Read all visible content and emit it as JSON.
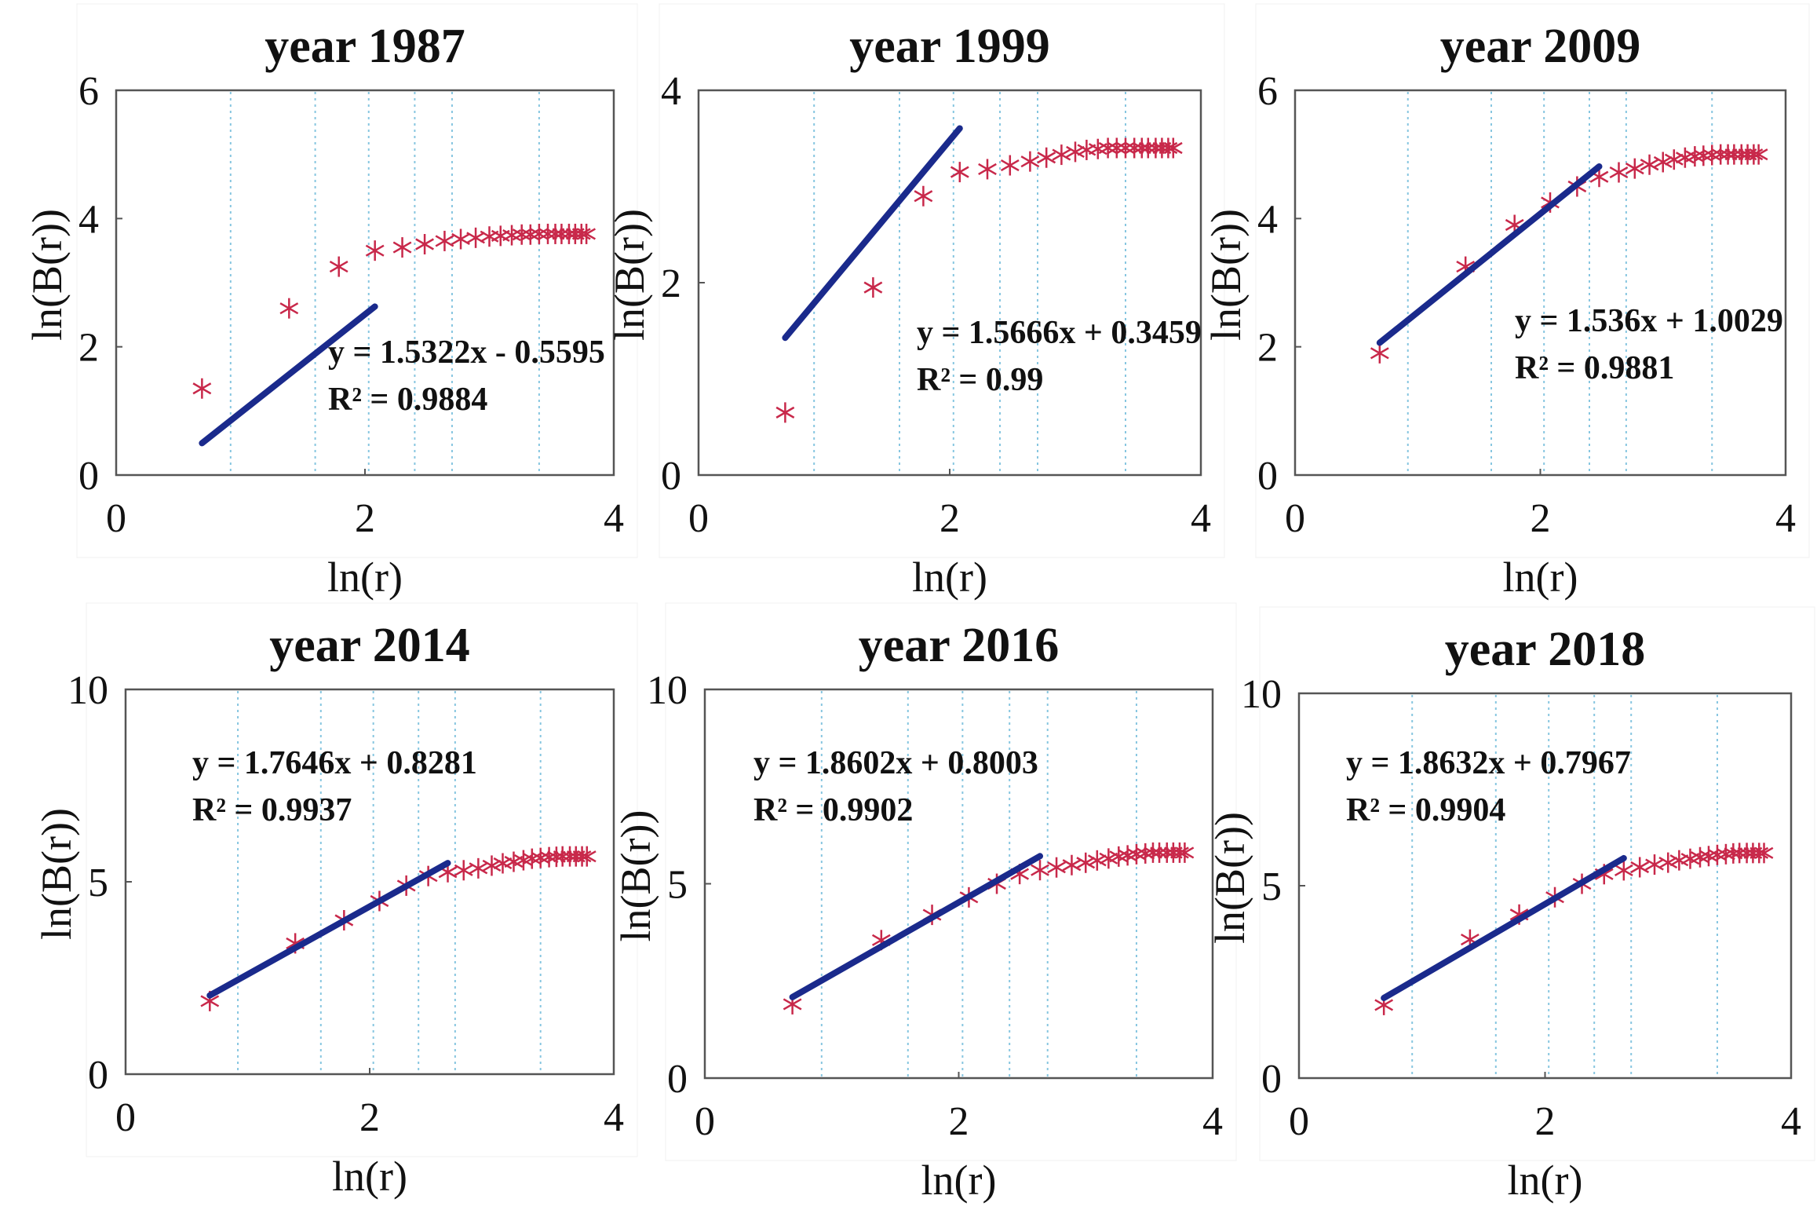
{
  "chart_data": [
    {
      "type": "scatter",
      "title": "year 1987",
      "xlabel": "ln(r)",
      "ylabel": "ln(B(r))",
      "xlim": [
        0,
        4
      ],
      "ylim": [
        0,
        6
      ],
      "xticks": [
        "0",
        "2",
        "4"
      ],
      "yticks": [
        "0",
        "2",
        "4",
        "6"
      ],
      "x": [
        0.69,
        1.39,
        1.79,
        2.08,
        2.3,
        2.48,
        2.64,
        2.77,
        2.89,
        3.0,
        3.09,
        3.18,
        3.26,
        3.33,
        3.4,
        3.47,
        3.53,
        3.58,
        3.64,
        3.69,
        3.74,
        3.78
      ],
      "y": [
        1.35,
        2.6,
        3.25,
        3.5,
        3.55,
        3.6,
        3.65,
        3.68,
        3.7,
        3.72,
        3.73,
        3.74,
        3.75,
        3.75,
        3.76,
        3.76,
        3.76,
        3.76,
        3.76,
        3.76,
        3.76,
        3.76
      ],
      "fit": {
        "x": [
          0.69,
          2.08
        ]
      },
      "equation": "y = 1.5322x - 0.5595",
      "r2": "R² = 0.9884",
      "gridlines_x": [
        0.92,
        1.6,
        2.03,
        2.4,
        2.7,
        3.4
      ],
      "grid": "vertical dotted",
      "colors": {
        "points": "#c8284a",
        "fit": "#1a2a8c",
        "grid": "#87c6e0"
      }
    },
    {
      "type": "scatter",
      "title": "year 1999",
      "xlabel": "ln(r)",
      "ylabel": "ln(B(r))",
      "xlim": [
        0,
        4
      ],
      "ylim": [
        0,
        4
      ],
      "xticks": [
        "0",
        "2",
        "4"
      ],
      "yticks": [
        "0",
        "2",
        "4"
      ],
      "x": [
        0.69,
        1.39,
        1.79,
        2.08,
        2.3,
        2.48,
        2.64,
        2.77,
        2.89,
        3.0,
        3.09,
        3.18,
        3.26,
        3.33,
        3.4,
        3.47,
        3.53,
        3.58,
        3.64,
        3.69,
        3.74,
        3.78
      ],
      "y": [
        0.65,
        1.95,
        2.9,
        3.15,
        3.18,
        3.22,
        3.26,
        3.3,
        3.33,
        3.36,
        3.38,
        3.39,
        3.4,
        3.4,
        3.4,
        3.4,
        3.4,
        3.4,
        3.4,
        3.4,
        3.4,
        3.4
      ],
      "fit": {
        "x": [
          0.69,
          2.08
        ]
      },
      "equation": "y = 1.5666x + 0.3459",
      "r2": "R² = 0.99",
      "gridlines_x": [
        0.92,
        1.6,
        2.03,
        2.4,
        2.7,
        3.4
      ],
      "grid": "vertical dotted",
      "colors": {
        "points": "#c8284a",
        "fit": "#1a2a8c",
        "grid": "#87c6e0"
      }
    },
    {
      "type": "scatter",
      "title": "year 2009",
      "xlabel": "ln(r)",
      "ylabel": "ln(B(r))",
      "xlim": [
        0,
        4
      ],
      "ylim": [
        0,
        6
      ],
      "xticks": [
        "0",
        "2",
        "4"
      ],
      "yticks": [
        "0",
        "2",
        "4",
        "6"
      ],
      "x": [
        0.69,
        1.39,
        1.79,
        2.08,
        2.3,
        2.48,
        2.64,
        2.77,
        2.89,
        3.0,
        3.09,
        3.18,
        3.26,
        3.33,
        3.4,
        3.47,
        3.53,
        3.58,
        3.64,
        3.69,
        3.74,
        3.78
      ],
      "y": [
        1.9,
        3.25,
        3.9,
        4.25,
        4.5,
        4.65,
        4.72,
        4.78,
        4.84,
        4.88,
        4.92,
        4.95,
        4.97,
        4.98,
        4.99,
        5.0,
        5.0,
        5.0,
        5.0,
        5.0,
        5.0,
        5.0
      ],
      "fit": {
        "x": [
          0.69,
          2.48
        ]
      },
      "equation": "y = 1.536x + 1.0029",
      "r2": "R² = 0.9881",
      "gridlines_x": [
        0.92,
        1.6,
        2.03,
        2.4,
        2.7,
        3.4
      ],
      "grid": "vertical dotted",
      "colors": {
        "points": "#c8284a",
        "fit": "#1a2a8c",
        "grid": "#87c6e0"
      }
    },
    {
      "type": "scatter",
      "title": "year 2014",
      "xlabel": "ln(r)",
      "ylabel": "ln(B(r))",
      "xlim": [
        0,
        4
      ],
      "ylim": [
        0,
        10
      ],
      "xticks": [
        "0",
        "2",
        "4"
      ],
      "yticks": [
        "0",
        "5",
        "10"
      ],
      "x": [
        0.69,
        1.39,
        1.79,
        2.08,
        2.3,
        2.48,
        2.64,
        2.77,
        2.89,
        3.0,
        3.09,
        3.18,
        3.26,
        3.33,
        3.4,
        3.47,
        3.53,
        3.58,
        3.64,
        3.69,
        3.74,
        3.78
      ],
      "y": [
        1.9,
        3.4,
        4.0,
        4.5,
        4.9,
        5.15,
        5.25,
        5.3,
        5.35,
        5.42,
        5.48,
        5.52,
        5.56,
        5.6,
        5.62,
        5.64,
        5.65,
        5.66,
        5.66,
        5.66,
        5.66,
        5.66
      ],
      "fit": {
        "x": [
          0.69,
          2.64
        ]
      },
      "equation": "y = 1.7646x + 0.8281",
      "r2": "R² = 0.9937",
      "gridlines_x": [
        0.92,
        1.6,
        2.03,
        2.4,
        2.7,
        3.4
      ],
      "grid": "vertical dotted",
      "colors": {
        "points": "#c8284a",
        "fit": "#1a2a8c",
        "grid": "#87c6e0"
      }
    },
    {
      "type": "scatter",
      "title": "year 2016",
      "xlabel": "ln(r)",
      "ylabel": "ln(B(r))",
      "xlim": [
        0,
        4
      ],
      "ylim": [
        0,
        10
      ],
      "xticks": [
        "0",
        "2",
        "4"
      ],
      "yticks": [
        "0",
        "5",
        "10"
      ],
      "x": [
        0.69,
        1.39,
        1.79,
        2.08,
        2.3,
        2.48,
        2.64,
        2.77,
        2.89,
        3.0,
        3.09,
        3.18,
        3.26,
        3.33,
        3.4,
        3.47,
        3.53,
        3.58,
        3.64,
        3.69,
        3.74,
        3.78
      ],
      "y": [
        1.9,
        3.55,
        4.2,
        4.65,
        5.0,
        5.25,
        5.35,
        5.42,
        5.48,
        5.54,
        5.6,
        5.65,
        5.7,
        5.73,
        5.76,
        5.78,
        5.8,
        5.8,
        5.8,
        5.8,
        5.8,
        5.8
      ],
      "fit": {
        "x": [
          0.69,
          2.64
        ]
      },
      "equation": "y = 1.8602x + 0.8003",
      "r2": "R² = 0.9902",
      "gridlines_x": [
        0.92,
        1.6,
        2.03,
        2.4,
        2.7,
        3.4
      ],
      "grid": "vertical dotted",
      "colors": {
        "points": "#c8284a",
        "fit": "#1a2a8c",
        "grid": "#87c6e0"
      }
    },
    {
      "type": "scatter",
      "title": "year 2018",
      "xlabel": "ln(r)",
      "ylabel": "ln(B(r))",
      "xlim": [
        0,
        4
      ],
      "ylim": [
        0,
        10
      ],
      "xticks": [
        "0",
        "2",
        "4"
      ],
      "yticks": [
        "0",
        "5",
        "10"
      ],
      "x": [
        0.69,
        1.39,
        1.79,
        2.08,
        2.3,
        2.48,
        2.64,
        2.77,
        2.89,
        3.0,
        3.09,
        3.18,
        3.26,
        3.33,
        3.4,
        3.47,
        3.53,
        3.58,
        3.64,
        3.69,
        3.74,
        3.78
      ],
      "y": [
        1.9,
        3.6,
        4.25,
        4.7,
        5.05,
        5.3,
        5.4,
        5.48,
        5.55,
        5.6,
        5.66,
        5.7,
        5.74,
        5.77,
        5.8,
        5.82,
        5.84,
        5.85,
        5.85,
        5.85,
        5.85,
        5.85
      ],
      "fit": {
        "x": [
          0.69,
          2.64
        ]
      },
      "equation": "y = 1.8632x + 0.7967",
      "r2": "R² = 0.9904",
      "gridlines_x": [
        0.92,
        1.6,
        2.03,
        2.4,
        2.7,
        3.4
      ],
      "grid": "vertical dotted",
      "colors": {
        "points": "#c8284a",
        "fit": "#1a2a8c",
        "grid": "#87c6e0"
      }
    }
  ]
}
